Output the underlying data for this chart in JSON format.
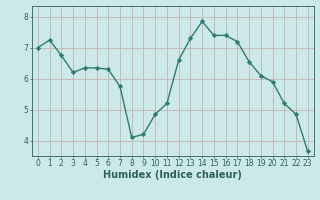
{
  "x": [
    0,
    1,
    2,
    3,
    4,
    5,
    6,
    7,
    8,
    9,
    10,
    11,
    12,
    13,
    14,
    15,
    16,
    17,
    18,
    19,
    20,
    21,
    22,
    23
  ],
  "y": [
    7.0,
    7.25,
    6.75,
    6.2,
    6.35,
    6.35,
    6.3,
    5.75,
    4.1,
    4.2,
    4.85,
    5.2,
    6.6,
    7.3,
    7.85,
    7.4,
    7.4,
    7.2,
    6.55,
    6.1,
    5.9,
    5.2,
    4.85,
    3.65
  ],
  "line_color": "#2e7d6e",
  "marker": "D",
  "marker_size": 2.2,
  "bg_color": "#cce9e9",
  "grid_color": "#c8b0b0",
  "tick_color": "#2e5f5f",
  "xlabel": "Humidex (Indice chaleur)",
  "xlabel_fontsize": 7,
  "ylim": [
    3.5,
    8.35
  ],
  "xlim": [
    -0.5,
    23.5
  ],
  "yticks": [
    4,
    5,
    6,
    7,
    8
  ],
  "xticks": [
    0,
    1,
    2,
    3,
    4,
    5,
    6,
    7,
    8,
    9,
    10,
    11,
    12,
    13,
    14,
    15,
    16,
    17,
    18,
    19,
    20,
    21,
    22,
    23
  ],
  "xtick_labels": [
    "0",
    "1",
    "2",
    "3",
    "4",
    "5",
    "6",
    "7",
    "8",
    "9",
    "10",
    "11",
    "12",
    "13",
    "14",
    "15",
    "16",
    "17",
    "18",
    "19",
    "20",
    "21",
    "22",
    "23"
  ],
  "tick_fontsize": 5.5,
  "linewidth": 1.0
}
